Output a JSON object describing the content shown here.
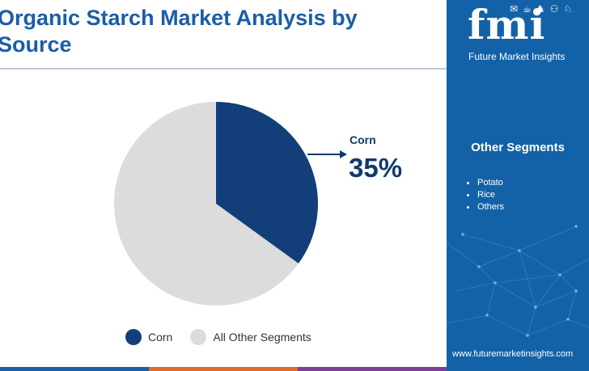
{
  "header": {
    "title": "Organic Starch Market Analysis by Source"
  },
  "chart_data": {
    "type": "pie",
    "categories": [
      "Corn",
      "All Other Segments"
    ],
    "values": [
      35,
      65
    ],
    "unit": "%",
    "start_angle_deg": 0,
    "colors": [
      "#123f7a",
      "#dcdcdc"
    ],
    "legend": [
      "Corn",
      "All Other Segments"
    ],
    "legend_placement": "bottom",
    "callout": {
      "label": "Corn",
      "value": "35%"
    }
  },
  "sidebar": {
    "brand": "fmi",
    "brand_sub": "Future Market Insights",
    "logo_icons": [
      "✉",
      "☕",
      "♞",
      "⚇",
      "♘"
    ],
    "section_title": "Other Segments",
    "items": [
      "Potato",
      "Rice",
      "Others"
    ],
    "url": "www.futuremarketinsights.com"
  },
  "footer_colors": [
    "#1a5ea8",
    "#e06b2a",
    "#7d3e96"
  ]
}
